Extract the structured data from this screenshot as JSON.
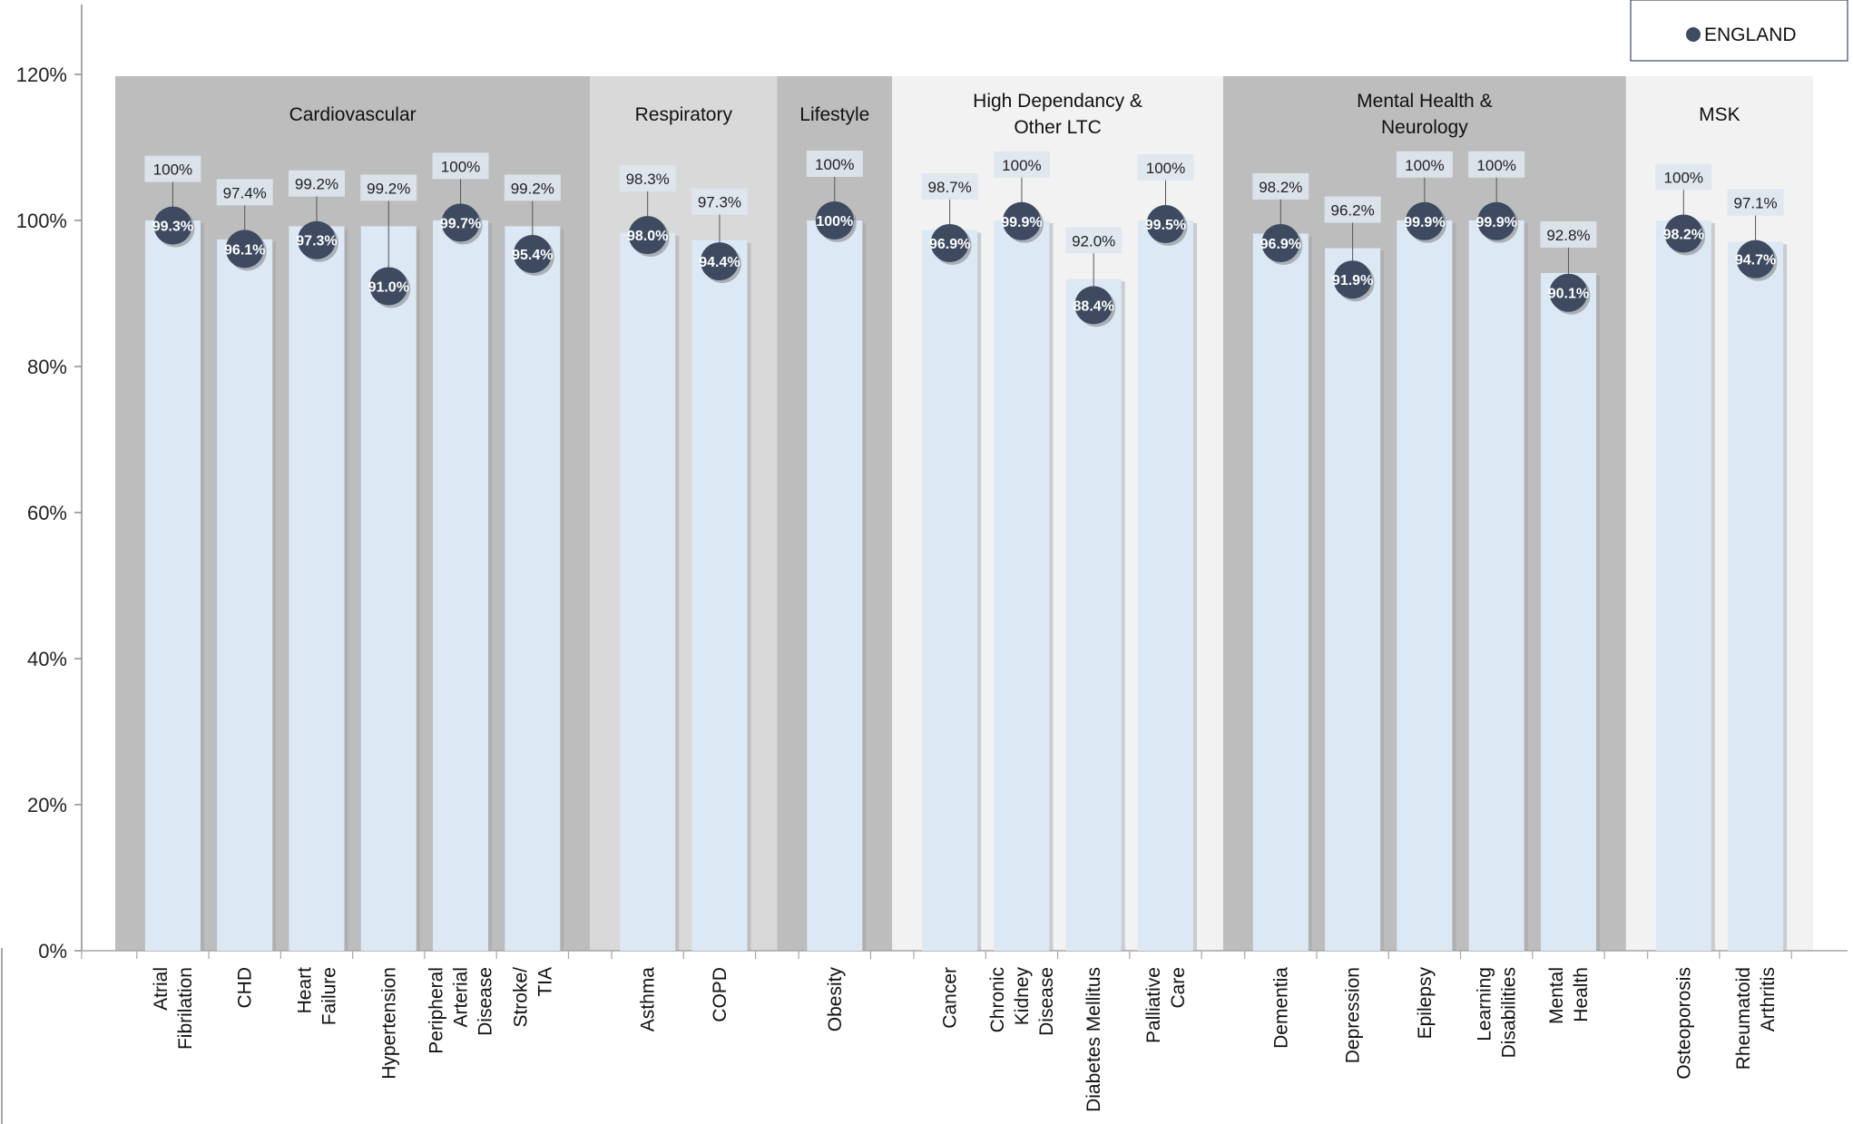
{
  "chart_data": {
    "type": "bar",
    "ylim": [
      0,
      1.2
    ],
    "yticks": [
      {
        "value": 0,
        "label": "0%"
      },
      {
        "value": 0.2,
        "label": "20%"
      },
      {
        "value": 0.4,
        "label": "40%"
      },
      {
        "value": 0.6,
        "label": "60%"
      },
      {
        "value": 0.8,
        "label": "80%"
      },
      {
        "value": 1.0,
        "label": "100%"
      },
      {
        "value": 1.2,
        "label": "120%"
      }
    ],
    "legend": {
      "position": "top-right",
      "entries": [
        "ENGLAND"
      ]
    },
    "colors": {
      "bar_fill": "#dde8f5",
      "dot_fill": "#3d4a60",
      "band_dark": "#bdbdbd",
      "band_mid": "#d9d9d9",
      "band_light": "#f2f2f2",
      "label_box": "#dfe5ee"
    },
    "groups": [
      {
        "name": "Cardiovascular",
        "shade": "dark",
        "categories": [
          {
            "label": "Atrial Fibrilation",
            "lines": [
              "Atrial",
              "Fibrilation"
            ],
            "bar": 1.0,
            "bar_label": "100%",
            "england": 0.993,
            "england_label": "99.3%"
          },
          {
            "label": "CHD",
            "lines": [
              "CHD"
            ],
            "bar": 0.974,
            "bar_label": "97.4%",
            "england": 0.961,
            "england_label": "96.1%"
          },
          {
            "label": "Heart Failure",
            "lines": [
              "Heart",
              "Failure"
            ],
            "bar": 0.992,
            "bar_label": "99.2%",
            "england": 0.973,
            "england_label": "97.3%"
          },
          {
            "label": "Hypertension",
            "lines": [
              "Hypertension"
            ],
            "bar": 0.992,
            "bar_label": "99.2%",
            "england": 0.91,
            "england_label": "91.0%"
          },
          {
            "label": "Peripheral Arterial Disease",
            "lines": [
              "Peripheral",
              "Arterial",
              "Disease"
            ],
            "bar": 1.0,
            "bar_label": "100%",
            "england": 0.997,
            "england_label": "99.7%"
          },
          {
            "label": "Stroke/ TIA",
            "lines": [
              "Stroke/",
              "TIA"
            ],
            "bar": 0.992,
            "bar_label": "99.2%",
            "england": 0.954,
            "england_label": "95.4%"
          }
        ]
      },
      {
        "name": "Respiratory",
        "shade": "mid",
        "categories": [
          {
            "label": "Asthma",
            "lines": [
              "Asthma"
            ],
            "bar": 0.983,
            "bar_label": "98.3%",
            "england": 0.98,
            "england_label": "98.0%"
          },
          {
            "label": "COPD",
            "lines": [
              "COPD"
            ],
            "bar": 0.973,
            "bar_label": "97.3%",
            "england": 0.944,
            "england_label": "94.4%"
          }
        ]
      },
      {
        "name": "Lifestyle",
        "shade": "dark",
        "categories": [
          {
            "label": "Obesity",
            "lines": [
              "Obesity"
            ],
            "bar": 1.0,
            "bar_label": "100%",
            "england": 1.0,
            "england_label": "100%"
          }
        ]
      },
      {
        "name": "High Dependancy & Other LTC",
        "lines": [
          "High Dependancy &",
          "Other LTC"
        ],
        "shade": "light",
        "categories": [
          {
            "label": "Cancer",
            "lines": [
              "Cancer"
            ],
            "bar": 0.987,
            "bar_label": "98.7%",
            "england": 0.969,
            "england_label": "96.9%"
          },
          {
            "label": "Chronic Kidney Disease",
            "lines": [
              "Chronic",
              "Kidney",
              "Disease"
            ],
            "bar": 1.0,
            "bar_label": "100%",
            "england": 0.999,
            "england_label": "99.9%"
          },
          {
            "label": "Diabetes Mellitus",
            "lines": [
              "Diabetes Mellitus"
            ],
            "bar": 0.92,
            "bar_label": "92.0%",
            "england": 0.884,
            "england_label": "88.4%"
          },
          {
            "label": "Palliative Care",
            "lines": [
              "Palliative",
              "Care"
            ],
            "bar": 1.0,
            "bar_label": "100%",
            "england": 0.995,
            "england_label": "99.5%"
          }
        ]
      },
      {
        "name": "Mental Health & Neurology",
        "lines": [
          "Mental Health &",
          "Neurology"
        ],
        "shade": "dark",
        "categories": [
          {
            "label": "Dementia",
            "lines": [
              "Dementia"
            ],
            "bar": 0.982,
            "bar_label": "98.2%",
            "england": 0.969,
            "england_label": "96.9%"
          },
          {
            "label": "Depression",
            "lines": [
              "Depression"
            ],
            "bar": 0.962,
            "bar_label": "96.2%",
            "england": 0.919,
            "england_label": "91.9%"
          },
          {
            "label": "Epilepsy",
            "lines": [
              "Epilepsy"
            ],
            "bar": 1.0,
            "bar_label": "100%",
            "england": 0.999,
            "england_label": "99.9%"
          },
          {
            "label": "Learning Disabilities",
            "lines": [
              "Learning",
              "Disabilities"
            ],
            "bar": 1.0,
            "bar_label": "100%",
            "england": 0.999,
            "england_label": "99.9%"
          },
          {
            "label": "Mental Health",
            "lines": [
              "Mental",
              "Health"
            ],
            "bar": 0.928,
            "bar_label": "92.8%",
            "england": 0.901,
            "england_label": "90.1%"
          }
        ]
      },
      {
        "name": "MSK",
        "shade": "light",
        "categories": [
          {
            "label": "Osteoporosis",
            "lines": [
              "Osteoporosis"
            ],
            "bar": 1.0,
            "bar_label": "100%",
            "england": 0.982,
            "england_label": "98.2%"
          },
          {
            "label": "Rheumatoid Arthritis",
            "lines": [
              "Rheumatoid",
              "Arthritis"
            ],
            "bar": 0.971,
            "bar_label": "97.1%",
            "england": 0.947,
            "england_label": "94.7%"
          }
        ]
      }
    ]
  }
}
